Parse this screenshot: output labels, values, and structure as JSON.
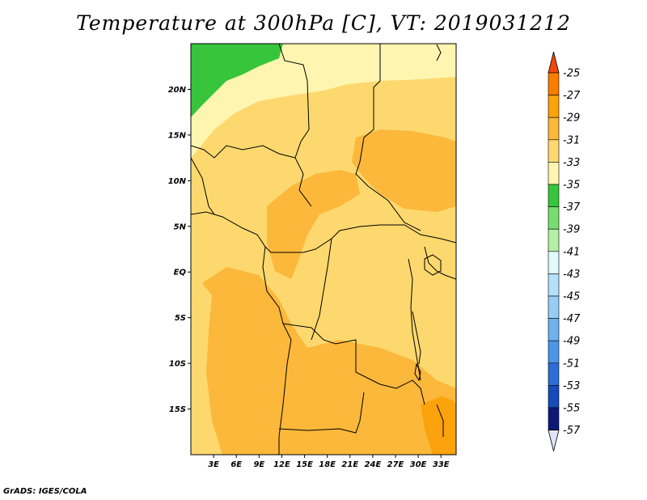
{
  "title": "Temperature at 300hPa [C], VT: 2019031212",
  "credit": "GrADS: IGES/COLA",
  "map": {
    "lat_range": [
      -20,
      25
    ],
    "lon_range": [
      0,
      35
    ],
    "lat_labels": [
      {
        "lat": 20,
        "label": "20N"
      },
      {
        "lat": 15,
        "label": "15N"
      },
      {
        "lat": 10,
        "label": "10N"
      },
      {
        "lat": 5,
        "label": "5N"
      },
      {
        "lat": 0,
        "label": "EQ"
      },
      {
        "lat": -5,
        "label": "5S"
      },
      {
        "lat": -10,
        "label": "10S"
      },
      {
        "lat": -15,
        "label": "15S"
      }
    ],
    "lon_labels": [
      {
        "lon": 3,
        "label": "3E"
      },
      {
        "lon": 6,
        "label": "6E"
      },
      {
        "lon": 9,
        "label": "9E"
      },
      {
        "lon": 12,
        "label": "12E"
      },
      {
        "lon": 15,
        "label": "15E"
      },
      {
        "lon": 18,
        "label": "18E"
      },
      {
        "lon": 21,
        "label": "21E"
      },
      {
        "lon": 24,
        "label": "24E"
      },
      {
        "lon": 27,
        "label": "27E"
      },
      {
        "lon": 30,
        "label": "30E"
      },
      {
        "lon": 33,
        "label": "33E"
      }
    ]
  },
  "colorbar": {
    "levels": [
      "-25",
      "-27",
      "-29",
      "-31",
      "-33",
      "-35",
      "-37",
      "-39",
      "-41",
      "-43",
      "-45",
      "-47",
      "-49",
      "-51",
      "-53",
      "-55",
      "-57"
    ],
    "colors": [
      "#f04a0a",
      "#fa7d00",
      "#fba20c",
      "#fbb83a",
      "#fdd86e",
      "#fef5b0",
      "#37c63b",
      "#77dd6e",
      "#b4f0a6",
      "#e1fafa",
      "#b4e1fa",
      "#96cdf4",
      "#6eb3f0",
      "#4b96e6",
      "#2c6ed6",
      "#164bb9",
      "#0c1978",
      "#e1e1fa"
    ]
  }
}
